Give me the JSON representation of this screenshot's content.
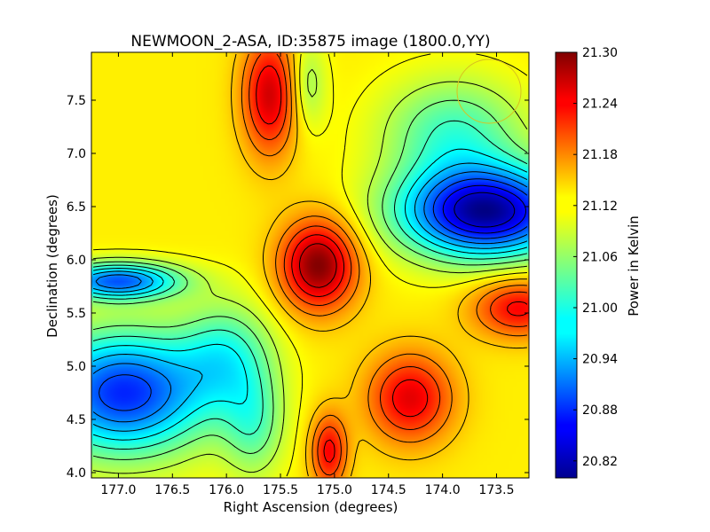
{
  "chart_data": {
    "type": "heatmap",
    "title": "NEWMOON_2-ASA, ID:35875 image (1800.0,YY)",
    "xlabel": "Right Ascension (degrees)",
    "ylabel": "Declination (degrees)",
    "colorbar_label": "Power in Kelvin",
    "colormap": "jet",
    "xlim": [
      177.25,
      173.2
    ],
    "ylim": [
      3.95,
      7.95
    ],
    "clim": [
      20.8,
      21.3
    ],
    "x_ticks": [
      177.0,
      176.5,
      176.0,
      175.5,
      175.0,
      174.5,
      174.0,
      173.5
    ],
    "x_tick_labels": [
      "177.0",
      "176.5",
      "176.0",
      "175.5",
      "175.0",
      "174.5",
      "174.0",
      "173.5"
    ],
    "y_ticks": [
      4.0,
      4.5,
      5.0,
      5.5,
      6.0,
      6.5,
      7.0,
      7.5
    ],
    "y_tick_labels": [
      "4.0",
      "4.5",
      "5.0",
      "5.5",
      "6.0",
      "6.5",
      "7.0",
      "7.5"
    ],
    "colorbar_ticks": [
      20.82,
      20.88,
      20.94,
      21.0,
      21.06,
      21.12,
      21.18,
      21.24,
      21.3
    ],
    "colorbar_tick_labels": [
      "20.82",
      "20.88",
      "20.94",
      "21.00",
      "21.06",
      "21.12",
      "21.18",
      "21.24",
      "21.30"
    ],
    "grid": false,
    "contours": true,
    "features": [
      {
        "ra": 175.15,
        "dec": 5.95,
        "value": 21.3,
        "sigma_ra": 0.25,
        "sigma_dec": 0.3
      },
      {
        "ra": 175.6,
        "dec": 7.55,
        "value": 21.26,
        "sigma_ra": 0.18,
        "sigma_dec": 0.4
      },
      {
        "ra": 174.3,
        "dec": 4.7,
        "value": 21.25,
        "sigma_ra": 0.28,
        "sigma_dec": 0.3
      },
      {
        "ra": 175.05,
        "dec": 4.2,
        "value": 21.24,
        "sigma_ra": 0.12,
        "sigma_dec": 0.25
      },
      {
        "ra": 173.6,
        "dec": 6.45,
        "value": 20.81,
        "sigma_ra": 0.55,
        "sigma_dec": 0.3
      },
      {
        "ra": 173.9,
        "dec": 7.2,
        "value": 21.02,
        "sigma_ra": 0.45,
        "sigma_dec": 0.35
      },
      {
        "ra": 177.0,
        "dec": 5.8,
        "value": 20.91,
        "sigma_ra": 0.4,
        "sigma_dec": 0.12
      },
      {
        "ra": 176.95,
        "dec": 4.75,
        "value": 20.88,
        "sigma_ra": 0.55,
        "sigma_dec": 0.4
      },
      {
        "ra": 175.25,
        "dec": 7.65,
        "value": 21.06,
        "sigma_ra": 0.12,
        "sigma_dec": 0.3
      },
      {
        "ra": 175.75,
        "dec": 4.45,
        "value": 21.04,
        "sigma_ra": 0.2,
        "sigma_dec": 0.35
      },
      {
        "ra": 176.0,
        "dec": 5.1,
        "value": 21.02,
        "sigma_ra": 0.3,
        "sigma_dec": 0.35
      },
      {
        "ra": 173.3,
        "dec": 5.55,
        "value": 21.24,
        "sigma_ra": 0.3,
        "sigma_dec": 0.2
      }
    ]
  }
}
